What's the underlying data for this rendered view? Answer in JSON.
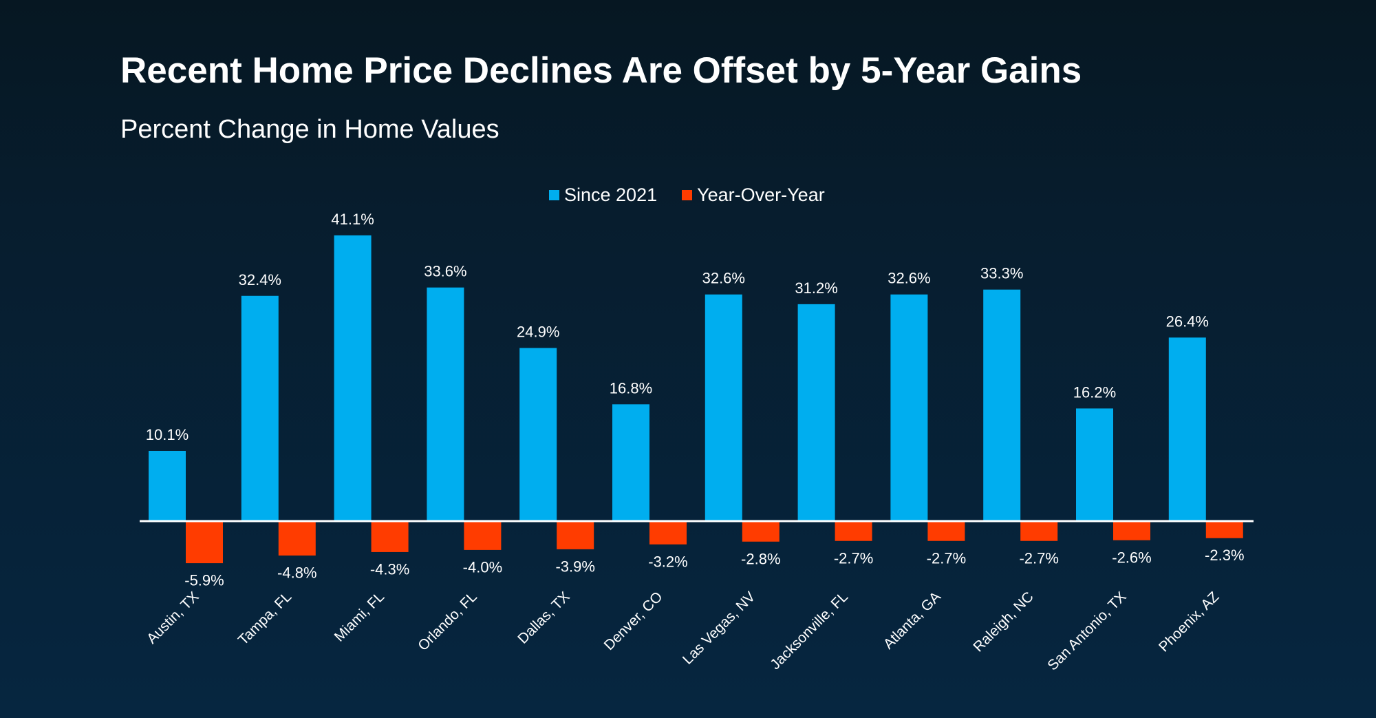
{
  "header": {
    "title": "Recent Home Price Declines Are Offset by 5-Year Gains",
    "subtitle": "Percent Change in Home Values"
  },
  "colors": {
    "since_2021": "#00aeef",
    "year_over_year": "#ff3c00",
    "axis": "#ffffff",
    "text": "#ffffff"
  },
  "legend": {
    "items": [
      {
        "label": "Since 2021",
        "color": "#00aeef"
      },
      {
        "label": "Year-Over-Year",
        "color": "#ff3c00"
      }
    ]
  },
  "chart_data": {
    "type": "bar",
    "title": "Recent Home Price Declines Are Offset by 5-Year Gains",
    "subtitle": "Percent Change in Home Values",
    "xlabel": "",
    "ylabel": "",
    "categories": [
      "Austin, TX",
      "Tampa, FL",
      "Miami, FL",
      "Orlando, FL",
      "Dallas, TX",
      "Denver, CO",
      "Las Vegas, NV",
      "Jacksonville, FL",
      "Atlanta, GA",
      "Raleigh, NC",
      "San Antonio, TX",
      "Phoenix, AZ"
    ],
    "series": [
      {
        "name": "Since 2021",
        "color": "#00aeef",
        "values": [
          10.1,
          32.4,
          41.1,
          33.6,
          24.9,
          16.8,
          32.6,
          31.2,
          32.6,
          33.3,
          16.2,
          26.4
        ],
        "labels": [
          "10.1%",
          "32.4%",
          "41.1%",
          "33.6%",
          "24.9%",
          "16.8%",
          "32.6%",
          "31.2%",
          "32.6%",
          "33.3%",
          "16.2%",
          "26.4%"
        ]
      },
      {
        "name": "Year-Over-Year",
        "color": "#ff3c00",
        "values": [
          -5.9,
          -4.8,
          -4.3,
          -4.0,
          -3.9,
          -3.2,
          -2.8,
          -2.7,
          -2.7,
          -2.7,
          -2.6,
          -2.3
        ],
        "labels": [
          "-5.9%",
          "-4.8%",
          "-4.3%",
          "-4.0%",
          "-3.9%",
          "-3.2%",
          "-2.8%",
          "-2.7%",
          "-2.7%",
          "-2.7%",
          "-2.6%",
          "-2.3%"
        ]
      }
    ],
    "ylim": [
      -8,
      45
    ],
    "grid": false,
    "y_axis_visible": false,
    "legend_position": "top-center",
    "data_labels": true,
    "x_tick_rotation": -45
  }
}
